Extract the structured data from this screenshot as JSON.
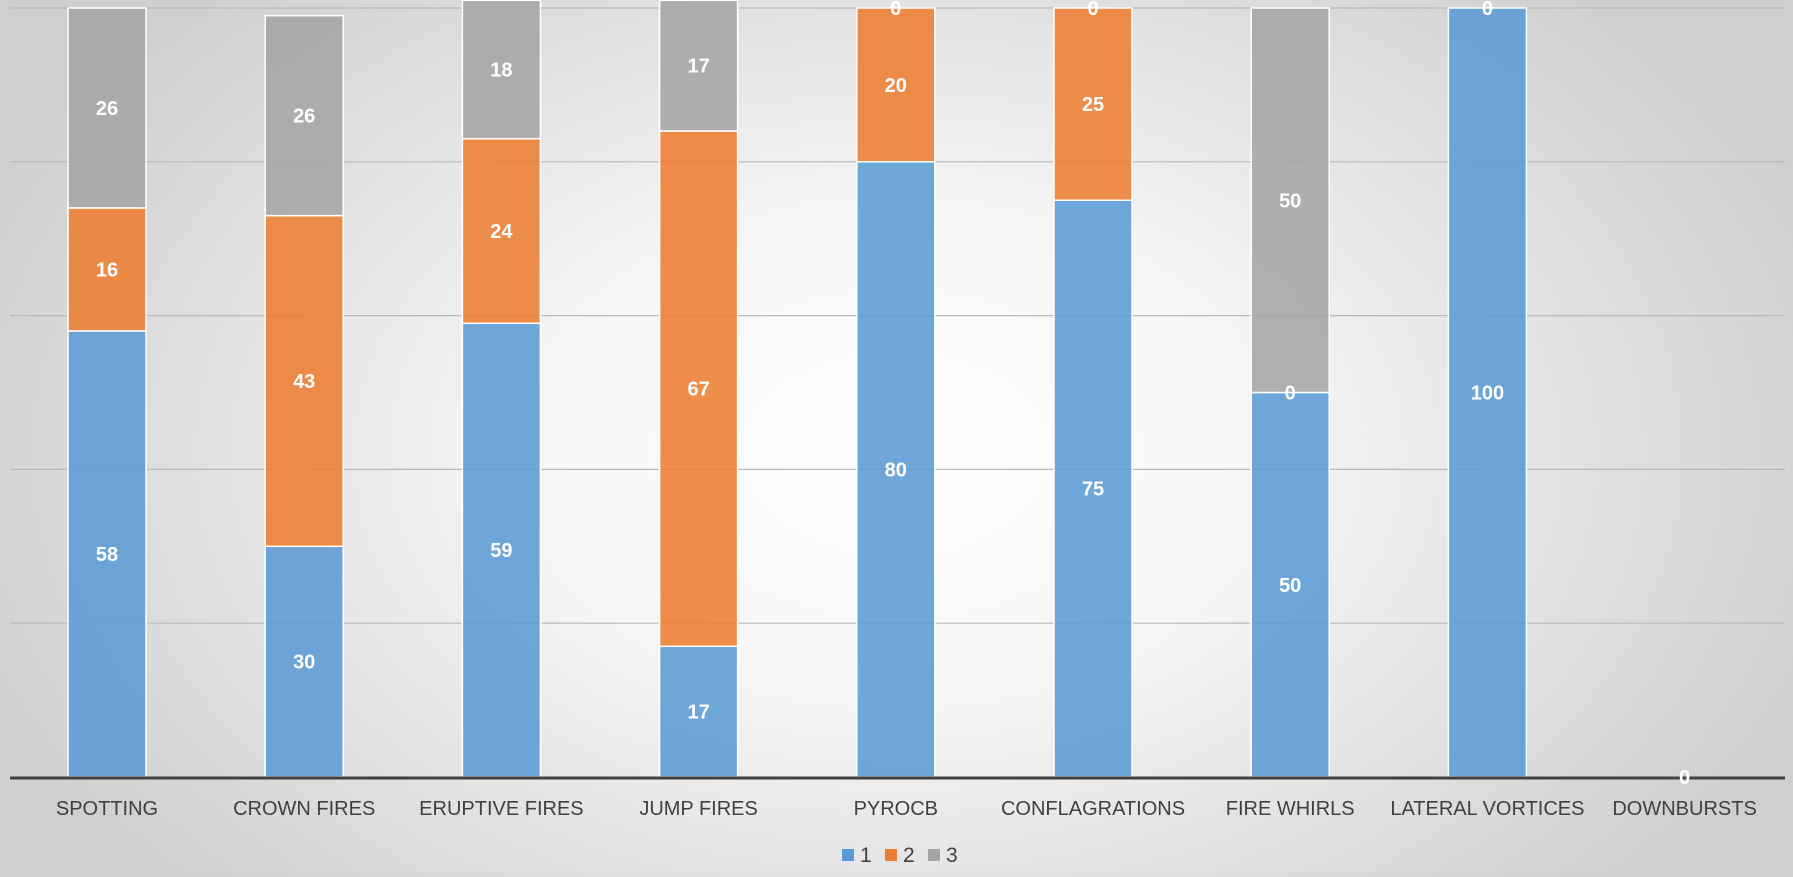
{
  "chart_data": {
    "type": "bar",
    "stacked": true,
    "categories": [
      "SPOTTING",
      "CROWN FIRES",
      "ERUPTIVE FIRES",
      "JUMP FIRES",
      "PYROCB",
      "CONFLAGRATIONS",
      "FIRE WHIRLS",
      "LATERAL VORTICES",
      "DOWNBURSTS"
    ],
    "series": [
      {
        "name": "1",
        "color": "#5b9bd5",
        "values": [
          58,
          30,
          59,
          17,
          80,
          75,
          50,
          100,
          0
        ]
      },
      {
        "name": "2",
        "color": "#ed7d31",
        "values": [
          16,
          43,
          24,
          67,
          20,
          25,
          0,
          0,
          0
        ]
      },
      {
        "name": "3",
        "color": "#a5a5a5",
        "values": [
          26,
          26,
          18,
          17,
          0,
          0,
          50,
          0,
          0
        ]
      }
    ],
    "data_labels": [
      [
        "58",
        "30",
        "59",
        "17",
        "80",
        "75",
        "50",
        "100",
        "0"
      ],
      [
        "16",
        "43",
        "24",
        "67",
        "20",
        "25",
        "0",
        "0",
        ""
      ],
      [
        "26",
        "26",
        "18",
        "17",
        "0",
        "0",
        "50",
        "",
        ""
      ]
    ],
    "ylim": [
      0,
      100
    ],
    "grid": true,
    "legend": "bottom",
    "title": "",
    "xlabel": "",
    "ylabel": ""
  }
}
